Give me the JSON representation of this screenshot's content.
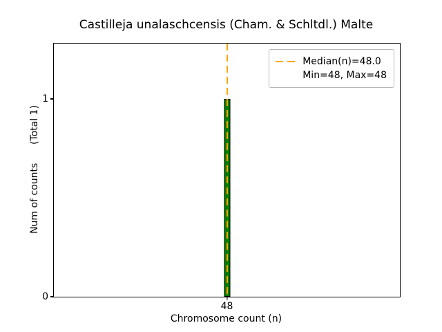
{
  "chart_data": {
    "type": "bar",
    "title": "Castilleja unalaschcensis (Cham. & Schltdl.) Malte",
    "xlabel": "Chromosome count (n)",
    "ylabel": "Num of counts      (Total 1)",
    "categories": [
      "48"
    ],
    "values": [
      1
    ],
    "ylim": [
      0,
      1.28
    ],
    "yticks": [
      0,
      1
    ],
    "grid": false,
    "bar_color": "#008000",
    "bar_edge_color": "#000000",
    "median_line": {
      "x": 48,
      "color": "#ffa500",
      "style": "dashed"
    },
    "legend": {
      "position": "upper right",
      "entries": [
        {
          "label": "Median(n)=48.0",
          "marker": "dashed-orange-line"
        },
        {
          "label": "Min=48, Max=48",
          "marker": "none"
        }
      ]
    }
  }
}
